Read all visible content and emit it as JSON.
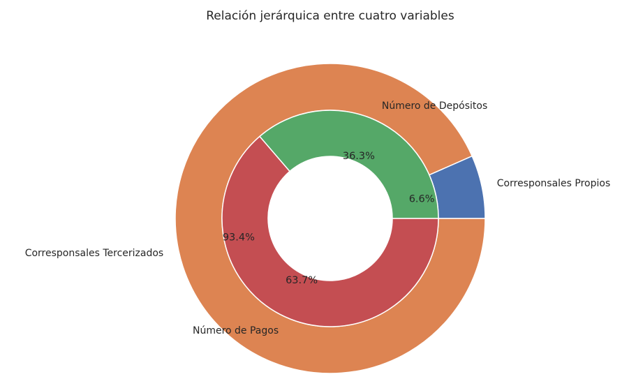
{
  "chart_data": {
    "type": "pie",
    "title": "Relación jerárquica entre cuatro variables",
    "outer_ring": {
      "labels": [
        "Corresponsales Propios",
        "Corresponsales Tercerizados"
      ],
      "percents": [
        6.6,
        93.4
      ],
      "percent_labels": [
        "6.6%",
        "93.4%"
      ],
      "colors": [
        "#4c72b0",
        "#dd8452"
      ]
    },
    "inner_ring": {
      "labels": [
        "Número de Depósitos",
        "Número de Pagos"
      ],
      "percents": [
        36.3,
        63.7
      ],
      "percent_labels": [
        "36.3%",
        "63.7%"
      ],
      "colors": [
        "#55a868",
        "#c44e52"
      ]
    },
    "start_angle_deg": 0,
    "direction": "counterclockwise"
  }
}
